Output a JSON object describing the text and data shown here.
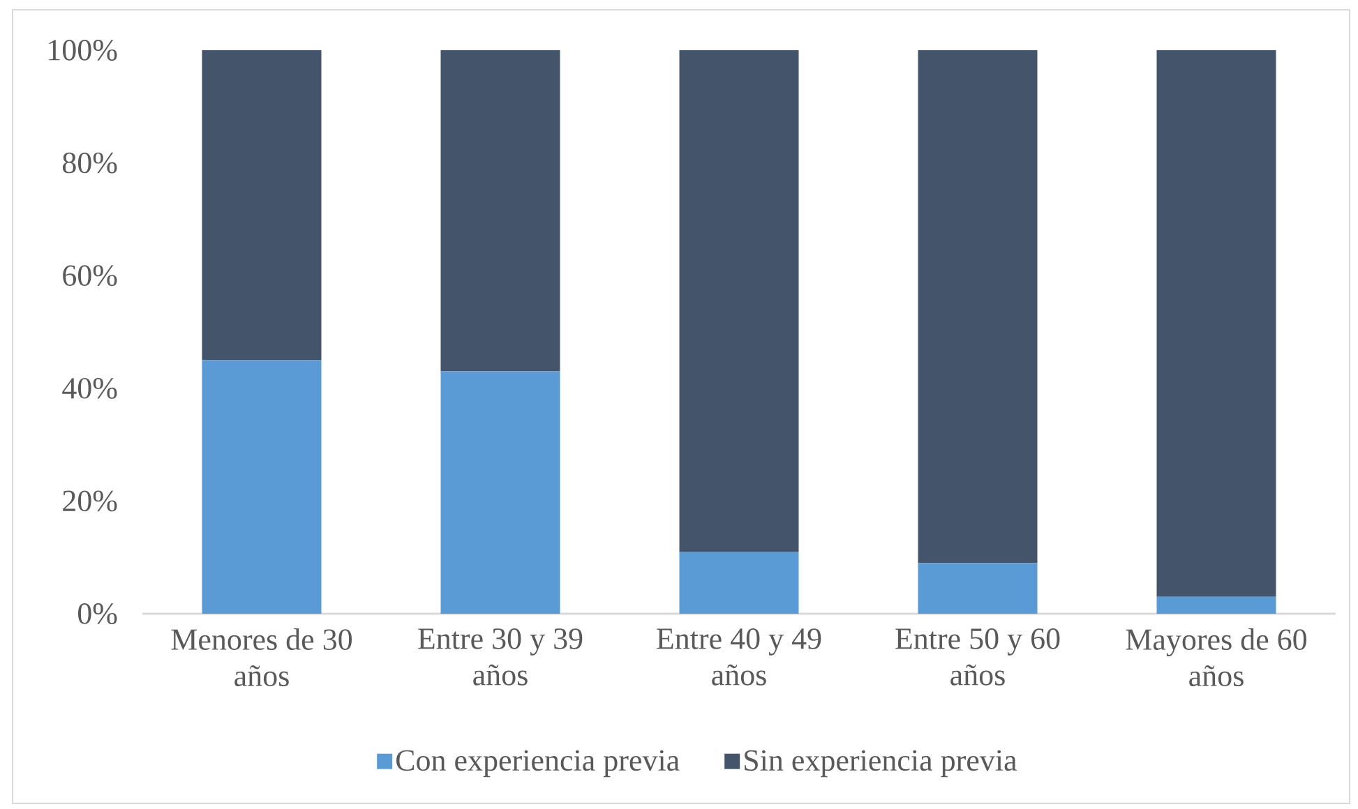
{
  "chart_data": {
    "type": "bar",
    "stacked": true,
    "categories": [
      "Menores de 30 años",
      "Entre 30 y 39 años",
      "Entre 40 y 49 años",
      "Entre 50 y 60 años",
      "Mayores de 60 años"
    ],
    "series": [
      {
        "name": "Con experiencia previa",
        "color": "#5b9bd5",
        "values": [
          45,
          43,
          11,
          9,
          3
        ]
      },
      {
        "name": "Sin experiencia previa",
        "color": "#44546a",
        "values": [
          55,
          57,
          89,
          91,
          97
        ]
      }
    ],
    "ylim": [
      0,
      100
    ],
    "yticks": [
      {
        "value": 0,
        "label": "0%"
      },
      {
        "value": 20,
        "label": "20%"
      },
      {
        "value": 40,
        "label": "40%"
      },
      {
        "value": 60,
        "label": "60%"
      },
      {
        "value": 80,
        "label": "80%"
      },
      {
        "value": 100,
        "label": "100%"
      }
    ],
    "legend": "bottom"
  }
}
